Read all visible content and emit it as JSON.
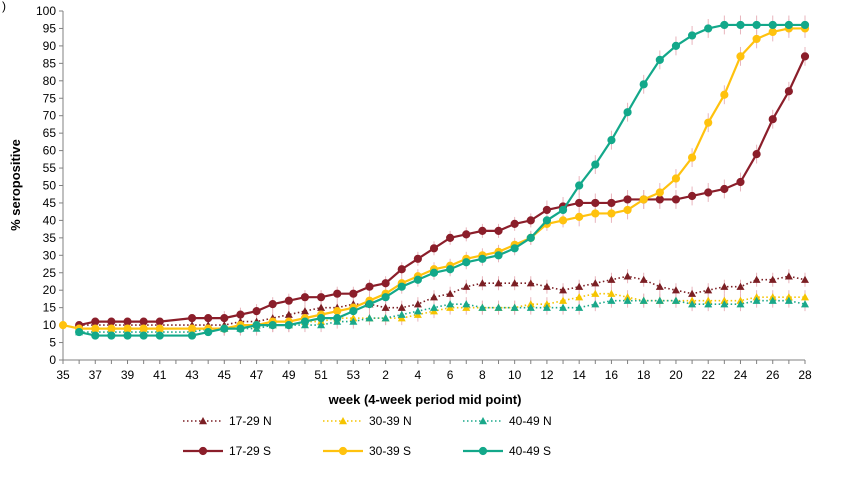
{
  "chart_data": {
    "type": "line",
    "corner_label": ")",
    "xlabel": "week (4-week period mid point)",
    "ylabel": "% seropositive",
    "ylim": [
      0,
      100
    ],
    "yticks": [
      0,
      5,
      10,
      15,
      20,
      25,
      30,
      35,
      40,
      45,
      50,
      55,
      60,
      65,
      70,
      75,
      80,
      85,
      90,
      95,
      100
    ],
    "xtick_labels": [
      "35",
      "37",
      "39",
      "41",
      "43",
      "45",
      "47",
      "49",
      "51",
      "53",
      "2",
      "4",
      "6",
      "8",
      "10",
      "12",
      "14",
      "16",
      "18",
      "20",
      "22",
      "24",
      "26",
      "28"
    ],
    "x_index_range": [
      0,
      46
    ],
    "grid": false,
    "legend_position": "bottom",
    "series": [
      {
        "name": "17-29 N",
        "color": "#7b1f24",
        "dash": "dotted",
        "marker": "triangle",
        "x": [
          1,
          2,
          3,
          4,
          5,
          6,
          8,
          9,
          10,
          11,
          12,
          13,
          14,
          15,
          16,
          17,
          18,
          19,
          20,
          21,
          22,
          23,
          24,
          25,
          26,
          27,
          28,
          29,
          30,
          31,
          32,
          33,
          34,
          35,
          36,
          37,
          38,
          39,
          40,
          41,
          42,
          43,
          44,
          45,
          46
        ],
        "y": [
          10,
          10,
          10,
          10,
          10,
          10,
          10,
          10,
          10,
          11,
          11,
          12,
          13,
          14,
          15,
          15,
          16,
          16,
          15,
          15,
          16,
          18,
          19,
          21,
          22,
          22,
          22,
          22,
          21,
          20,
          21,
          22,
          23,
          24,
          23,
          21,
          20,
          19,
          20,
          21,
          21,
          23,
          23,
          24,
          23
        ]
      },
      {
        "name": "30-39 N",
        "color": "#f5c400",
        "dash": "dotted",
        "marker": "triangle",
        "x": [
          1,
          2,
          3,
          4,
          5,
          6,
          8,
          9,
          10,
          11,
          12,
          13,
          14,
          15,
          16,
          17,
          18,
          19,
          20,
          21,
          22,
          23,
          24,
          25,
          26,
          27,
          28,
          29,
          30,
          31,
          32,
          33,
          34,
          35,
          36,
          37,
          38,
          39,
          40,
          41,
          42,
          43,
          44,
          45,
          46
        ],
        "y": [
          9,
          9,
          9,
          9,
          9,
          9,
          9,
          9,
          9,
          10,
          10,
          10,
          10,
          11,
          11,
          12,
          12,
          12,
          12,
          12,
          13,
          14,
          15,
          15,
          15,
          15,
          15,
          16,
          16,
          17,
          18,
          19,
          19,
          18,
          17,
          17,
          17,
          17,
          17,
          17,
          17,
          18,
          18,
          18,
          18
        ]
      },
      {
        "name": "40-49 N",
        "color": "#1aa88a",
        "dash": "dotted",
        "marker": "triangle",
        "x": [
          1,
          2,
          3,
          4,
          5,
          6,
          8,
          9,
          10,
          11,
          12,
          13,
          14,
          15,
          16,
          17,
          18,
          19,
          20,
          21,
          22,
          23,
          24,
          25,
          26,
          27,
          28,
          29,
          30,
          31,
          32,
          33,
          34,
          35,
          36,
          37,
          38,
          39,
          40,
          41,
          42,
          43,
          44,
          45,
          46
        ],
        "y": [
          8,
          8,
          8,
          8,
          8,
          8,
          8,
          9,
          9,
          9,
          9,
          10,
          10,
          10,
          10,
          11,
          11,
          12,
          12,
          13,
          14,
          15,
          16,
          16,
          15,
          15,
          15,
          15,
          15,
          15,
          15,
          16,
          17,
          17,
          17,
          17,
          17,
          16,
          16,
          16,
          16,
          17,
          17,
          17,
          16
        ]
      },
      {
        "name": "17-29 S",
        "color": "#8b1e2a",
        "dash": "solid",
        "marker": "circle",
        "x": [
          1,
          2,
          3,
          4,
          5,
          6,
          8,
          9,
          10,
          11,
          12,
          13,
          14,
          15,
          16,
          17,
          18,
          19,
          20,
          21,
          22,
          23,
          24,
          25,
          26,
          27,
          28,
          29,
          30,
          31,
          32,
          33,
          34,
          35,
          36,
          37,
          38,
          39,
          40,
          41,
          42,
          43,
          44,
          45,
          46
        ],
        "y": [
          10,
          11,
          11,
          11,
          11,
          11,
          12,
          12,
          12,
          13,
          14,
          16,
          17,
          18,
          18,
          19,
          19,
          21,
          22,
          26,
          29,
          32,
          35,
          36,
          37,
          37,
          39,
          40,
          43,
          44,
          45,
          45,
          45,
          46,
          46,
          46,
          46,
          47,
          48,
          49,
          51,
          59,
          69,
          77,
          87
        ]
      },
      {
        "name": "30-39 S",
        "color": "#ffc20e",
        "dash": "solid",
        "marker": "circle",
        "x": [
          0,
          1,
          2,
          3,
          4,
          5,
          6,
          8,
          9,
          10,
          11,
          12,
          13,
          14,
          15,
          16,
          17,
          18,
          19,
          20,
          21,
          22,
          23,
          24,
          25,
          26,
          27,
          28,
          29,
          30,
          31,
          32,
          33,
          34,
          35,
          36,
          37,
          38,
          39,
          40,
          41,
          42,
          43,
          44,
          45,
          46
        ],
        "y": [
          10,
          9,
          9,
          9,
          9,
          9,
          9,
          9,
          9,
          9,
          10,
          10,
          11,
          11,
          12,
          13,
          14,
          15,
          17,
          19,
          22,
          24,
          26,
          27,
          29,
          30,
          31,
          33,
          35,
          39,
          40,
          41,
          42,
          42,
          43,
          46,
          48,
          52,
          58,
          68,
          76,
          87,
          92,
          94,
          95,
          95
        ]
      },
      {
        "name": "40-49 S",
        "color": "#13a88a",
        "dash": "solid",
        "marker": "circle",
        "x": [
          1,
          2,
          3,
          4,
          5,
          6,
          8,
          9,
          10,
          11,
          12,
          13,
          14,
          15,
          16,
          17,
          18,
          19,
          20,
          21,
          22,
          23,
          24,
          25,
          26,
          27,
          28,
          29,
          30,
          31,
          32,
          33,
          34,
          35,
          36,
          37,
          38,
          39,
          40,
          41,
          42,
          43,
          44,
          45,
          46
        ],
        "y": [
          8,
          7,
          7,
          7,
          7,
          7,
          7,
          8,
          9,
          9,
          10,
          10,
          10,
          11,
          12,
          12,
          14,
          16,
          18,
          21,
          23,
          25,
          26,
          28,
          29,
          30,
          32,
          35,
          40,
          43,
          50,
          56,
          63,
          71,
          79,
          86,
          90,
          93,
          95,
          96,
          96,
          96,
          96,
          96,
          96
        ]
      }
    ]
  }
}
